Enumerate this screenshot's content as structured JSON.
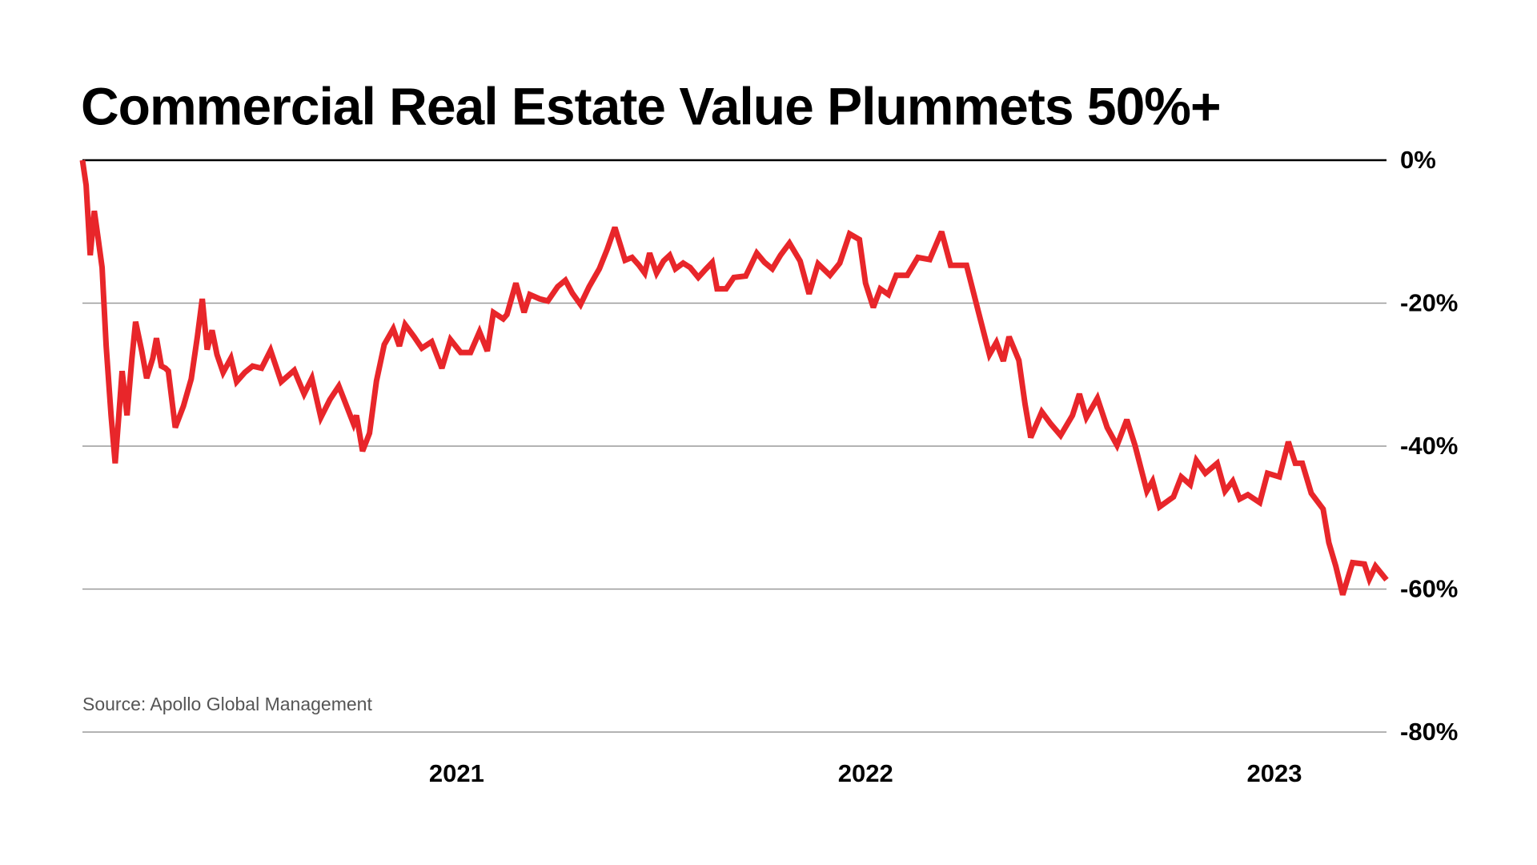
{
  "chart_data": {
    "type": "line",
    "title": "Commercial Real Estate Value Plummets 50%+",
    "source": "Source: Apollo Global Management",
    "x": [
      2020.085,
      2020.094,
      2020.104,
      2020.114,
      2020.123,
      2020.133,
      2020.143,
      2020.155,
      2020.165,
      2020.174,
      2020.182,
      2020.194,
      2020.206,
      2020.215,
      2020.23,
      2020.242,
      2020.257,
      2020.266,
      2020.278,
      2020.288,
      2020.295,
      2020.312,
      2020.332,
      2020.351,
      2020.366,
      2020.378,
      2020.39,
      2020.402,
      2020.414,
      2020.429,
      2020.448,
      2020.462,
      2020.482,
      2020.501,
      2020.523,
      2020.545,
      2020.571,
      2020.603,
      2020.627,
      2020.646,
      2020.668,
      2020.69,
      2020.712,
      2020.731,
      2020.748,
      2020.755,
      2020.77,
      2020.787,
      2020.804,
      2020.823,
      2020.845,
      2020.86,
      2020.874,
      2020.896,
      2020.915,
      2020.939,
      2020.964,
      2020.985,
      2021.01,
      2021.034,
      2021.056,
      2021.075,
      2021.09,
      2021.114,
      2021.123,
      2021.145,
      2021.165,
      2021.179,
      2021.203,
      2021.223,
      2021.247,
      2021.266,
      2021.283,
      2021.303,
      2021.324,
      2021.349,
      2021.368,
      2021.387,
      2021.412,
      2021.429,
      2021.446,
      2021.46,
      2021.472,
      2021.489,
      2021.506,
      2021.521,
      2021.535,
      2021.554,
      2021.571,
      2021.591,
      2021.61,
      2021.625,
      2021.637,
      2021.659,
      2021.678,
      2021.707,
      2021.734,
      2021.753,
      2021.772,
      2021.792,
      2021.814,
      2021.84,
      2021.862,
      2021.884,
      2021.913,
      2021.937,
      2021.961,
      2021.985,
      2022.0,
      2022.019,
      2022.036,
      2022.056,
      2022.075,
      2022.102,
      2022.128,
      2022.157,
      2022.186,
      2022.208,
      2022.228,
      2022.247,
      2022.276,
      2022.303,
      2022.32,
      2022.337,
      2022.351,
      2022.375,
      2022.39,
      2022.404,
      2022.431,
      2022.453,
      2022.477,
      2022.506,
      2022.523,
      2022.54,
      2022.567,
      2022.591,
      2022.615,
      2022.639,
      2022.659,
      2022.688,
      2022.702,
      2022.719,
      2022.753,
      2022.772,
      2022.794,
      2022.809,
      2022.831,
      2022.86,
      2022.879,
      2022.898,
      2022.915,
      2022.935,
      2022.964,
      2022.983,
      2023.012,
      2023.034,
      2023.051,
      2023.068,
      2023.09,
      2023.119,
      2023.133,
      2023.15,
      2023.167,
      2023.191,
      2023.22,
      2023.232,
      2023.247,
      2023.274
    ],
    "series": [
      {
        "name": "Commercial real estate value",
        "color": "#e8262a",
        "values": [
          0,
          -3.5,
          -13.3,
          -7.1,
          -10.8,
          -15.0,
          -26.0,
          -35.7,
          -42.4,
          -35.7,
          -29.5,
          -35.7,
          -27.7,
          -22.6,
          -26.7,
          -30.5,
          -27.7,
          -24.9,
          -28.8,
          -29.1,
          -29.5,
          -37.4,
          -34.4,
          -30.6,
          -24.7,
          -19.4,
          -26.5,
          -23.8,
          -27.2,
          -29.7,
          -27.7,
          -31.0,
          -29.7,
          -28.8,
          -29.1,
          -26.6,
          -31.0,
          -29.4,
          -32.7,
          -30.5,
          -36.0,
          -33.5,
          -31.6,
          -34.4,
          -36.9,
          -35.7,
          -40.7,
          -38.2,
          -30.9,
          -25.8,
          -23.6,
          -26.0,
          -23.0,
          -24.7,
          -26.3,
          -25.4,
          -29.1,
          -25.1,
          -26.9,
          -26.9,
          -24.0,
          -26.7,
          -21.3,
          -22.2,
          -21.6,
          -17.2,
          -21.3,
          -18.8,
          -19.4,
          -19.7,
          -17.7,
          -16.8,
          -18.6,
          -20.2,
          -17.7,
          -15.2,
          -12.5,
          -9.4,
          -14.0,
          -13.6,
          -14.7,
          -15.8,
          -13.0,
          -15.8,
          -14.1,
          -13.3,
          -15.2,
          -14.4,
          -15.0,
          -16.4,
          -15.2,
          -14.3,
          -18.0,
          -18.0,
          -16.4,
          -16.2,
          -13.0,
          -14.3,
          -15.2,
          -13.3,
          -11.6,
          -14.1,
          -18.7,
          -14.5,
          -16.1,
          -14.4,
          -10.3,
          -11.1,
          -17.2,
          -20.6,
          -18.0,
          -18.8,
          -16.1,
          -16.1,
          -13.6,
          -13.9,
          -10.0,
          -14.7,
          -14.7,
          -14.7,
          -21.2,
          -27.2,
          -25.5,
          -28.1,
          -24.7,
          -28.0,
          -34.1,
          -38.8,
          -35.2,
          -36.9,
          -38.5,
          -35.7,
          -32.7,
          -36.0,
          -33.3,
          -37.4,
          -39.9,
          -36.3,
          -39.9,
          -46.3,
          -44.9,
          -48.5,
          -47.1,
          -44.3,
          -45.4,
          -42.0,
          -43.8,
          -42.4,
          -46.3,
          -44.9,
          -47.4,
          -46.8,
          -47.9,
          -43.8,
          -44.3,
          -39.4,
          -42.4,
          -42.4,
          -46.6,
          -48.8,
          -53.5,
          -56.8,
          -60.8,
          -56.3,
          -56.5,
          -58.6,
          -56.8,
          -58.7
        ]
      }
    ],
    "xlim": [
      2020.085,
      2023.274
    ],
    "xticks": [
      2021,
      2022,
      2023
    ],
    "ylim": [
      -80,
      0
    ],
    "yticks": [
      {
        "value": 0,
        "label": "0%"
      },
      {
        "value": -20,
        "label": "-20%"
      },
      {
        "value": -40,
        "label": "-40%"
      },
      {
        "value": -60,
        "label": "-60%"
      },
      {
        "value": -80,
        "label": "-80%"
      }
    ],
    "grid": true
  }
}
